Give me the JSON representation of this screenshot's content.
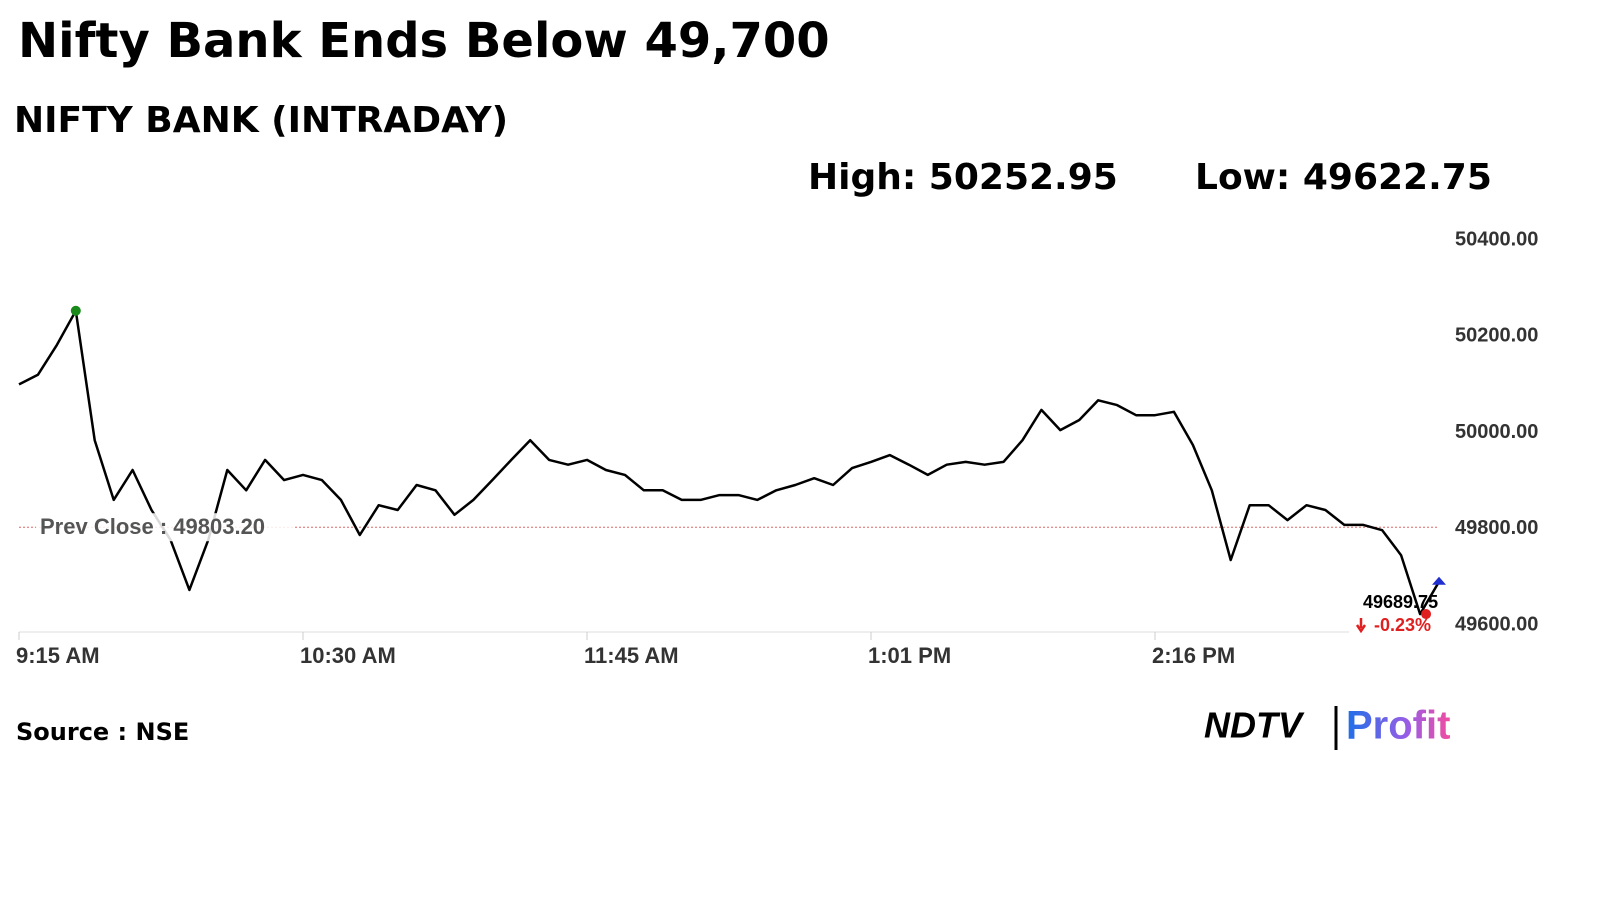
{
  "chart_data": {
    "type": "line",
    "title": "Nifty Bank Ends Below 49,700",
    "subtitle": "NIFTY BANK (INTRADAY)",
    "high": {
      "label": "High: 50252.95",
      "value": 50252.95
    },
    "low": {
      "label": "Low: 49622.75",
      "value": 49622.75
    },
    "prev_close": {
      "label": "Prev Close : 49803.20",
      "value": 49803.2
    },
    "change": "-0.23%",
    "categories": [
      "9:15 AM",
      null,
      null,
      null,
      null,
      null,
      null,
      null,
      null,
      null,
      null,
      null,
      null,
      null,
      null,
      "10:30 AM",
      null,
      null,
      null,
      null,
      null,
      null,
      null,
      null,
      null,
      null,
      null,
      null,
      null,
      null,
      "11:45 AM",
      null,
      null,
      null,
      null,
      null,
      null,
      null,
      null,
      null,
      null,
      null,
      null,
      null,
      null,
      "1:01 PM",
      null,
      null,
      null,
      null,
      null,
      null,
      null,
      null,
      null,
      null,
      null,
      null,
      null,
      null,
      "2:16 PM",
      null,
      null,
      null,
      null,
      null,
      null,
      null,
      null,
      null,
      null,
      null,
      null,
      null,
      null,
      null
    ],
    "series": [
      {
        "name": "NIFTY BANK",
        "color": "#000000",
        "values": [
          50100,
          50120,
          50182,
          50252.95,
          49984,
          49860,
          49922,
          49839,
          49777,
          49673,
          49777,
          49922,
          49880,
          49943,
          49901,
          49912,
          49901,
          49860,
          49787,
          49849,
          49839,
          49891,
          49880,
          49829,
          49860,
          49901,
          49943,
          49984,
          49943,
          49933,
          49943,
          49922,
          49912,
          49880,
          49880,
          49860,
          49860,
          49870,
          49870,
          49860,
          49880,
          49891,
          49905,
          49891,
          49926,
          49939,
          49953,
          49933,
          49912,
          49933,
          49939,
          49933,
          49939,
          49984,
          50047,
          50005,
          50026,
          50067,
          50057,
          50036,
          50036,
          50043,
          49974,
          49880,
          49735,
          49849,
          49849,
          49818,
          49849,
          49839,
          49808,
          49808,
          49797,
          49745,
          49622.75,
          49689.75
        ],
        "value_labels": {
          "75": "49689.75"
        }
      }
    ],
    "ylim": [
      49600,
      50400
    ],
    "yticks": [
      {
        "value": 49600,
        "label": "49600.00"
      },
      {
        "value": 49800,
        "label": "49800.00"
      },
      {
        "value": 50000,
        "label": "50000.00"
      },
      {
        "value": 50200,
        "label": "50200.00"
      },
      {
        "value": 50400,
        "label": "50400.00"
      }
    ],
    "source": "Source : NSE",
    "logo": {
      "left": "NDTV",
      "right": "Profit"
    }
  }
}
